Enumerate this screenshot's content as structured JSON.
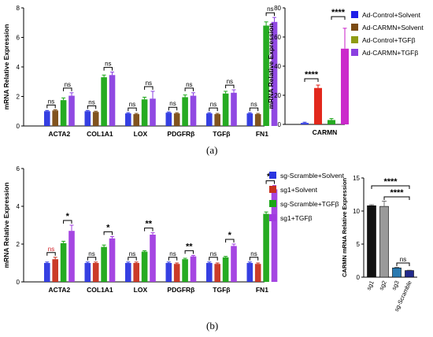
{
  "figure": {
    "label_a": "(a)",
    "label_b": "(b)"
  },
  "chart_data": [
    {
      "type": "bar",
      "panel": "a-left",
      "ylabel": "mRNA Relative Expression",
      "ylim": [
        0,
        8
      ],
      "yticks": [
        0,
        2,
        4,
        6,
        8
      ],
      "categories": [
        "ACTA2",
        "COL1A1",
        "LOX",
        "PDGFRβ",
        "TGFβ",
        "FN1"
      ],
      "series": [
        {
          "name": "Ad-Control+Solvent",
          "color": "#2a35e0",
          "values": [
            1.0,
            1.0,
            0.85,
            0.9,
            0.85,
            0.85
          ]
        },
        {
          "name": "Ad-CARMN+Solvent",
          "color": "#7a4a12",
          "values": [
            1.05,
            0.95,
            0.8,
            0.85,
            0.8,
            0.8
          ]
        },
        {
          "name": "Ad-Control+TGFβ",
          "color": "#1aa616",
          "values": [
            1.75,
            3.3,
            1.8,
            1.95,
            2.2,
            6.8
          ]
        },
        {
          "name": "Ad-CARMN+TGFβ",
          "color": "#8a3fe0",
          "values": [
            2.05,
            3.45,
            1.85,
            2.05,
            2.25,
            7.05
          ]
        }
      ],
      "errors": [
        [
          0.05,
          0.05,
          0.05,
          0.05,
          0.05,
          0.05
        ],
        [
          0.05,
          0.05,
          0.05,
          0.05,
          0.05,
          0.05
        ],
        [
          0.15,
          0.15,
          0.15,
          0.15,
          0.15,
          0.25
        ],
        [
          0.2,
          0.2,
          0.5,
          0.2,
          0.2,
          0.3
        ]
      ],
      "annotations": [
        "ns",
        "ns",
        "ns",
        "ns",
        "ns",
        "ns",
        "ns",
        "ns",
        "ns",
        "ns",
        "ns",
        "ns"
      ]
    },
    {
      "type": "bar",
      "panel": "a-right",
      "ylabel": "mRNA Relative Expression",
      "ylim": [
        0,
        80
      ],
      "yticks": [
        0,
        20,
        40,
        60,
        80
      ],
      "categories": [
        "CARMN"
      ],
      "series": [
        {
          "name": "Ad-Control+Solvent",
          "color": "#2a35e0",
          "values": [
            1
          ]
        },
        {
          "name": "Ad-CARMN+Solvent",
          "color": "#e01c10",
          "values": [
            25
          ]
        },
        {
          "name": "Ad-Control+TGFβ",
          "color": "#1aa616",
          "values": [
            3
          ]
        },
        {
          "name": "Ad-CARMN+TGFβ",
          "color": "#c81ec8",
          "values": [
            52
          ]
        }
      ],
      "errors": [
        [
          0.5
        ],
        [
          2
        ],
        [
          1
        ],
        [
          14
        ]
      ],
      "legend": [
        "Ad-Control+Solvent",
        "Ad-CARMN+Solvent",
        "Ad-Control+TGFβ",
        "Ad-CARMN+TGFβ"
      ],
      "legend_colors": [
        "#1f1fe8",
        "#7a4a12",
        "#8f9b14",
        "#8a3fe0"
      ],
      "annotations": [
        "****",
        "****"
      ]
    },
    {
      "type": "bar",
      "panel": "b-left",
      "ylabel": "mRNA Relative Expression",
      "ylim": [
        0,
        6
      ],
      "yticks": [
        0,
        2,
        4,
        6
      ],
      "categories": [
        "ACTA2",
        "COL1A1",
        "LOX",
        "PDGFRβ",
        "TGFβ",
        "FN1"
      ],
      "series": [
        {
          "name": "sg-Scramble+Solvent",
          "color": "#2a35e0",
          "values": [
            1.0,
            1.0,
            1.0,
            1.0,
            1.0,
            1.0
          ]
        },
        {
          "name": "sg1+Solvent",
          "color": "#c8301e",
          "values": [
            1.2,
            1.0,
            1.0,
            0.95,
            0.95,
            0.95
          ]
        },
        {
          "name": "sg-Scramble+TGFβ",
          "color": "#1aa616",
          "values": [
            2.05,
            1.85,
            1.6,
            1.2,
            1.3,
            3.6
          ]
        },
        {
          "name": "sg1+TGFβ",
          "color": "#a03ce0",
          "values": [
            2.7,
            2.3,
            2.5,
            1.35,
            1.9,
            4.9
          ]
        }
      ],
      "errors": [
        [
          0.05,
          0.05,
          0.05,
          0.05,
          0.05,
          0.05
        ],
        [
          0.1,
          0.05,
          0.05,
          0.05,
          0.05,
          0.05
        ],
        [
          0.1,
          0.1,
          0.05,
          0.05,
          0.05,
          0.1
        ],
        [
          0.3,
          0.1,
          0.1,
          0.05,
          0.1,
          0.2
        ]
      ],
      "legend": [
        "sg-Scramble+Solvent",
        "sg1+Solvent",
        "sg-Scramble+TGFβ",
        "sg1+TGFβ"
      ],
      "annotations": [
        "ns",
        "*",
        "ns",
        "*",
        "ns",
        "**",
        "ns",
        "**",
        "ns",
        "*",
        "ns",
        "**"
      ]
    },
    {
      "type": "bar",
      "panel": "b-right",
      "ylabel": "CARMN mRNA Relative Expression",
      "ylim": [
        0,
        15
      ],
      "yticks": [
        0,
        5,
        10,
        15
      ],
      "categories": [
        "sg1",
        "sg2",
        "sg3",
        "sg-Scramble"
      ],
      "series": [
        {
          "name": "",
          "colors": [
            "#111111",
            "#9a9a9a",
            "#2a7ab0",
            "#222a8c"
          ],
          "values": [
            10.8,
            10.7,
            1.4,
            1.0
          ]
        }
      ],
      "errors": [
        [
          0.15,
          0.8,
          0.1,
          0.05
        ]
      ],
      "annotations": [
        "****",
        "****",
        "ns"
      ]
    }
  ]
}
